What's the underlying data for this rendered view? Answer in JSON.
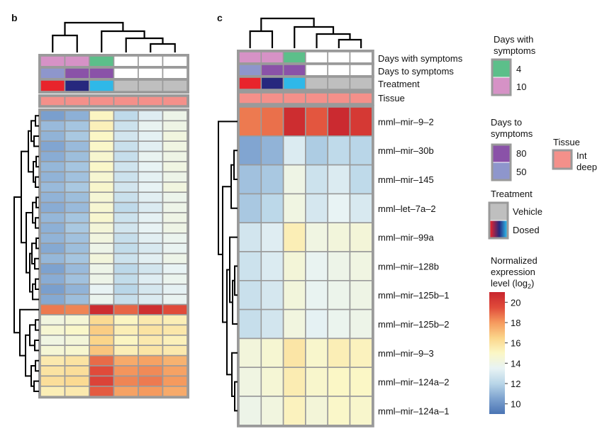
{
  "colors": {
    "border": "#9a9a9a",
    "dendro": "#000000",
    "colorscale": [
      "#4a74b4",
      "#7da2cf",
      "#b9d6e8",
      "#e8f3f4",
      "#fbf7c6",
      "#fbd58a",
      "#f59a5e",
      "#e04b3a",
      "#c8252e"
    ],
    "days_with": {
      "4": "#5cbf8a",
      "10": "#d692c6",
      "none": "#ffffff"
    },
    "days_to": {
      "80": "#8a52a8",
      "50": "#8e96cc",
      "none": "#ffffff"
    },
    "treatment": {
      "Vehicle": "#bfbfbf",
      "d1": "#e8242c",
      "d2": "#27287e",
      "d3": "#2fb8e8"
    },
    "tissue": "#f4908a"
  },
  "panels": {
    "b": "b",
    "c": "c"
  },
  "annotation_rows": [
    "Days with symptoms",
    "Days to symptoms",
    "Treatment",
    "Tissue"
  ],
  "annotations": {
    "days_with": [
      "10",
      "10",
      "4",
      "none",
      "none",
      "none"
    ],
    "days_to": [
      "50",
      "80",
      "80",
      "none",
      "none",
      "none"
    ],
    "treatment": [
      "d1",
      "d2",
      "d3",
      "Vehicle",
      "Vehicle",
      "Vehicle"
    ],
    "tissue": [
      "Int deep",
      "Int deep",
      "Int deep",
      "Int deep",
      "Int deep",
      "Int deep"
    ]
  },
  "legend": {
    "days_with": {
      "title": [
        "Days with",
        "symptoms"
      ],
      "items": [
        "4",
        "10"
      ]
    },
    "days_to": {
      "title": [
        "Days to",
        "symptoms"
      ],
      "items": [
        "80",
        "50"
      ]
    },
    "tissue": {
      "title": "Tissue",
      "item": [
        "Int",
        "deep"
      ]
    },
    "treatment": {
      "title": "Treatment",
      "items": [
        "Vehicle",
        "Dosed"
      ]
    },
    "expression": {
      "title": [
        "Normalized",
        "expression",
        "level (log"
      ],
      "subscript": "2",
      "close": ")",
      "ticks": [
        "20",
        "18",
        "16",
        "14",
        "12",
        "10"
      ]
    }
  },
  "chart_data": [
    {
      "type": "heatmap",
      "panel": "b",
      "title": "",
      "rows": 28,
      "columns": 6,
      "value_range": [
        9,
        21
      ],
      "values": [
        [
          10.4,
          10.9,
          15.1,
          12.2,
          13.2,
          13.9
        ],
        [
          11.2,
          11.5,
          15.3,
          12.6,
          13.6,
          14.0
        ],
        [
          11.0,
          11.6,
          15.0,
          12.8,
          13.4,
          14.2
        ],
        [
          10.6,
          11.2,
          14.9,
          12.5,
          13.3,
          14.1
        ],
        [
          10.8,
          11.3,
          14.7,
          12.4,
          13.6,
          14.0
        ],
        [
          11.1,
          11.5,
          14.9,
          12.7,
          13.5,
          14.1
        ],
        [
          11.0,
          11.4,
          14.6,
          12.6,
          13.4,
          13.9
        ],
        [
          11.2,
          11.6,
          14.8,
          12.8,
          13.5,
          14.2
        ],
        [
          11.0,
          11.3,
          14.5,
          12.5,
          13.3,
          13.8
        ],
        [
          10.8,
          11.2,
          14.6,
          12.2,
          13.1,
          13.9
        ],
        [
          11.1,
          11.5,
          14.7,
          12.6,
          13.4,
          14.0
        ],
        [
          10.9,
          11.6,
          14.4,
          12.8,
          13.5,
          14.0
        ],
        [
          11.0,
          11.4,
          14.2,
          12.4,
          13.3,
          13.7
        ],
        [
          10.7,
          11.3,
          13.9,
          12.3,
          13.0,
          13.6
        ],
        [
          11.1,
          11.5,
          14.3,
          12.6,
          13.3,
          13.9
        ],
        [
          10.5,
          11.2,
          13.9,
          12.1,
          12.8,
          13.5
        ],
        [
          10.8,
          11.4,
          13.9,
          12.3,
          13.2,
          13.7
        ],
        [
          10.4,
          11.0,
          13.5,
          12.0,
          12.9,
          13.4
        ],
        [
          10.7,
          11.3,
          13.7,
          12.4,
          13.1,
          13.6
        ],
        [
          18.6,
          18.4,
          20.7,
          19.0,
          20.6,
          19.5
        ],
        [
          14.2,
          14.5,
          16.3,
          15.1,
          15.6,
          15.4
        ],
        [
          14.6,
          14.9,
          16.7,
          15.4,
          15.9,
          15.7
        ],
        [
          14.1,
          14.4,
          16.5,
          15.1,
          15.6,
          15.3
        ],
        [
          14.5,
          14.7,
          16.9,
          15.4,
          15.8,
          15.6
        ],
        [
          15.6,
          15.9,
          18.9,
          17.6,
          17.8,
          17.4
        ],
        [
          15.9,
          16.1,
          19.5,
          18.1,
          18.3,
          17.8
        ],
        [
          16.1,
          16.3,
          19.8,
          18.4,
          18.6,
          18.0
        ],
        [
          15.4,
          15.6,
          19.2,
          17.8,
          18.0,
          17.6
        ]
      ]
    },
    {
      "type": "heatmap",
      "panel": "c",
      "title": "",
      "columns": 6,
      "value_range": [
        9,
        21
      ],
      "row_labels": [
        "mml–mir–9–2",
        "mml–mir–30b",
        "mml–mir–145",
        "mml–let–7a–2",
        "mml–mir–99a",
        "mml–mir–128b",
        "mml–mir–125b–1",
        "mml–mir–125b–2",
        "mml–mir–9–3",
        "mml–mir–124a–2",
        "mml–mir–124a–1"
      ],
      "values": [
        [
          18.6,
          18.8,
          20.7,
          19.3,
          20.8,
          20.2
        ],
        [
          10.6,
          11.0,
          13.1,
          11.7,
          12.2,
          12.0
        ],
        [
          11.4,
          11.6,
          14.0,
          12.6,
          13.1,
          12.2
        ],
        [
          11.6,
          12.1,
          14.1,
          12.9,
          13.5,
          13.0
        ],
        [
          12.8,
          13.2,
          15.4,
          14.1,
          14.3,
          14.4
        ],
        [
          12.6,
          13.1,
          14.4,
          13.6,
          13.9,
          14.1
        ],
        [
          12.5,
          12.9,
          14.3,
          13.6,
          13.8,
          14.0
        ],
        [
          12.4,
          12.8,
          14.2,
          13.4,
          13.7,
          13.9
        ],
        [
          14.3,
          14.6,
          15.8,
          14.8,
          15.4,
          15.2
        ],
        [
          14.1,
          14.5,
          15.5,
          14.8,
          15.0,
          15.0
        ],
        [
          13.9,
          14.2,
          15.2,
          14.4,
          14.9,
          14.8
        ]
      ]
    }
  ]
}
